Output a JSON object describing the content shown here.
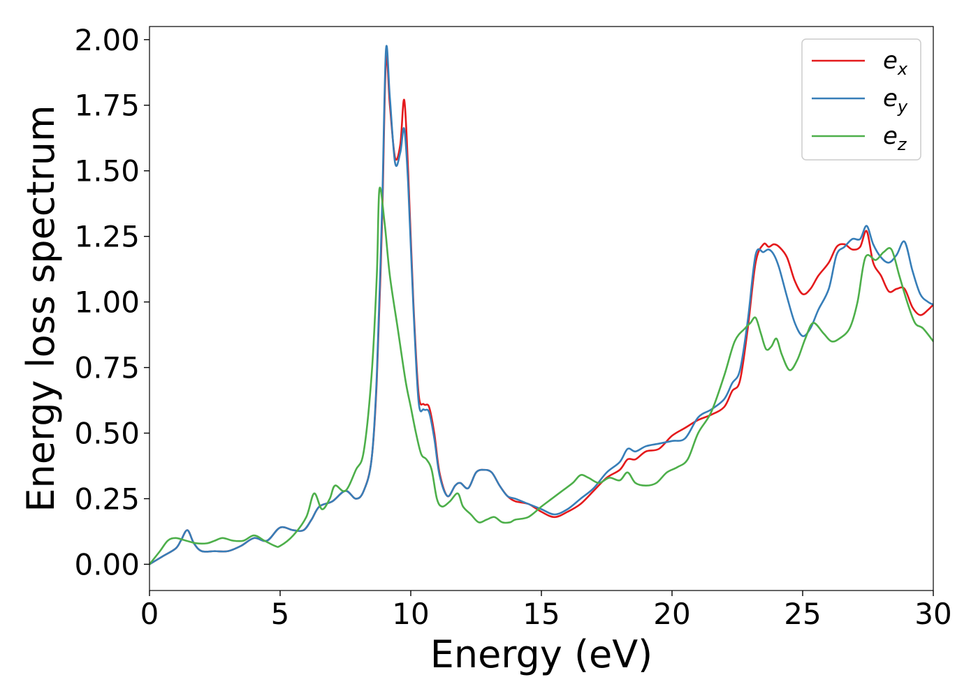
{
  "chart_data": {
    "type": "line",
    "title": "",
    "xlabel": "Energy (eV)",
    "ylabel": "Energy loss spectrum",
    "xlim": [
      0,
      30
    ],
    "ylim": [
      -0.1,
      2.05
    ],
    "xticks": [
      0,
      5,
      10,
      15,
      20,
      25,
      30
    ],
    "xtick_labels": [
      "0",
      "5",
      "10",
      "15",
      "20",
      "25",
      "30"
    ],
    "yticks": [
      0.0,
      0.25,
      0.5,
      0.75,
      1.0,
      1.25,
      1.5,
      1.75,
      2.0
    ],
    "ytick_labels": [
      "0.00",
      "0.25",
      "0.50",
      "0.75",
      "1.00",
      "1.25",
      "1.50",
      "1.75",
      "2.00"
    ],
    "grid": false,
    "legend_position": "top-right",
    "series": [
      {
        "name": "e_x",
        "label_base": "e",
        "label_sub": "x",
        "color": "#e41a1c",
        "x": [
          0,
          0.5,
          1.0,
          1.2,
          1.45,
          1.7,
          2.0,
          2.5,
          3.0,
          3.5,
          4.0,
          4.5,
          5.0,
          5.5,
          5.9,
          6.2,
          6.5,
          7.0,
          7.5,
          7.9,
          8.2,
          8.5,
          8.7,
          8.9,
          9.05,
          9.2,
          9.4,
          9.6,
          9.75,
          9.9,
          10.1,
          10.3,
          10.5,
          10.7,
          10.9,
          11.1,
          11.4,
          11.7,
          11.9,
          12.2,
          12.5,
          12.8,
          13.1,
          13.4,
          13.7,
          14.0,
          14.5,
          15.0,
          15.5,
          16.0,
          16.5,
          17.0,
          17.5,
          18.0,
          18.3,
          18.6,
          19.0,
          19.5,
          20.0,
          20.5,
          21.0,
          21.5,
          22.0,
          22.3,
          22.6,
          22.9,
          23.2,
          23.5,
          23.7,
          23.9,
          24.1,
          24.4,
          24.7,
          25.0,
          25.3,
          25.6,
          26.0,
          26.3,
          26.6,
          26.9,
          27.2,
          27.45,
          27.7,
          28.0,
          28.3,
          28.6,
          28.9,
          29.2,
          29.5,
          29.8,
          30.0
        ],
        "y": [
          0.0,
          0.03,
          0.06,
          0.09,
          0.13,
          0.08,
          0.05,
          0.05,
          0.05,
          0.07,
          0.1,
          0.09,
          0.14,
          0.13,
          0.13,
          0.17,
          0.22,
          0.24,
          0.28,
          0.25,
          0.28,
          0.4,
          0.7,
          1.3,
          1.92,
          1.75,
          1.55,
          1.6,
          1.77,
          1.5,
          1.0,
          0.65,
          0.61,
          0.6,
          0.5,
          0.35,
          0.26,
          0.3,
          0.31,
          0.29,
          0.35,
          0.36,
          0.35,
          0.3,
          0.26,
          0.24,
          0.23,
          0.2,
          0.18,
          0.2,
          0.23,
          0.28,
          0.33,
          0.36,
          0.4,
          0.4,
          0.43,
          0.44,
          0.49,
          0.52,
          0.55,
          0.57,
          0.6,
          0.66,
          0.7,
          0.9,
          1.15,
          1.22,
          1.21,
          1.22,
          1.21,
          1.17,
          1.08,
          1.03,
          1.05,
          1.1,
          1.15,
          1.21,
          1.22,
          1.2,
          1.21,
          1.27,
          1.15,
          1.1,
          1.04,
          1.05,
          1.05,
          0.98,
          0.95,
          0.97,
          0.99
        ]
      },
      {
        "name": "e_y",
        "label_base": "e",
        "label_sub": "y",
        "color": "#377eb8",
        "x": [
          0,
          0.5,
          1.0,
          1.2,
          1.45,
          1.7,
          2.0,
          2.5,
          3.0,
          3.5,
          4.0,
          4.5,
          5.0,
          5.5,
          5.9,
          6.2,
          6.5,
          7.0,
          7.5,
          7.9,
          8.2,
          8.5,
          8.7,
          8.9,
          9.05,
          9.2,
          9.4,
          9.6,
          9.75,
          9.9,
          10.1,
          10.3,
          10.5,
          10.7,
          10.9,
          11.1,
          11.4,
          11.7,
          11.9,
          12.2,
          12.5,
          12.8,
          13.1,
          13.4,
          13.7,
          14.0,
          14.5,
          15.0,
          15.5,
          16.0,
          16.5,
          17.0,
          17.5,
          18.0,
          18.3,
          18.6,
          19.0,
          19.5,
          20.0,
          20.5,
          21.0,
          21.5,
          22.0,
          22.3,
          22.6,
          22.9,
          23.2,
          23.5,
          23.7,
          23.9,
          24.1,
          24.4,
          24.7,
          25.0,
          25.3,
          25.6,
          26.0,
          26.3,
          26.6,
          26.9,
          27.2,
          27.45,
          27.7,
          28.0,
          28.3,
          28.6,
          28.9,
          29.2,
          29.5,
          29.8,
          30.0
        ],
        "y": [
          0.0,
          0.03,
          0.06,
          0.09,
          0.13,
          0.08,
          0.05,
          0.05,
          0.05,
          0.07,
          0.1,
          0.09,
          0.14,
          0.13,
          0.13,
          0.17,
          0.22,
          0.24,
          0.28,
          0.25,
          0.28,
          0.4,
          0.72,
          1.35,
          1.96,
          1.78,
          1.53,
          1.57,
          1.66,
          1.45,
          0.98,
          0.62,
          0.59,
          0.58,
          0.48,
          0.34,
          0.26,
          0.3,
          0.31,
          0.29,
          0.35,
          0.36,
          0.35,
          0.3,
          0.26,
          0.25,
          0.23,
          0.21,
          0.19,
          0.21,
          0.25,
          0.29,
          0.35,
          0.39,
          0.44,
          0.43,
          0.45,
          0.46,
          0.47,
          0.48,
          0.56,
          0.59,
          0.63,
          0.69,
          0.74,
          0.93,
          1.18,
          1.19,
          1.2,
          1.18,
          1.13,
          1.02,
          0.92,
          0.87,
          0.9,
          0.97,
          1.05,
          1.18,
          1.21,
          1.24,
          1.24,
          1.29,
          1.22,
          1.17,
          1.15,
          1.18,
          1.23,
          1.12,
          1.03,
          1.0,
          0.99
        ]
      },
      {
        "name": "e_z",
        "label_base": "e",
        "label_sub": "z",
        "color": "#4daf4a",
        "x": [
          0,
          0.4,
          0.7,
          1.0,
          1.4,
          1.8,
          2.2,
          2.5,
          2.8,
          3.2,
          3.6,
          4.0,
          4.4,
          4.8,
          5.0,
          5.5,
          6.0,
          6.3,
          6.6,
          6.9,
          7.1,
          7.5,
          7.9,
          8.2,
          8.5,
          8.7,
          8.8,
          9.0,
          9.2,
          9.5,
          9.8,
          10.0,
          10.2,
          10.4,
          10.6,
          10.8,
          11.0,
          11.2,
          11.5,
          11.8,
          12.0,
          12.3,
          12.6,
          12.9,
          13.2,
          13.5,
          13.8,
          14.0,
          14.5,
          15.0,
          15.4,
          15.8,
          16.2,
          16.5,
          16.8,
          17.2,
          17.6,
          18.0,
          18.3,
          18.6,
          19.0,
          19.4,
          19.8,
          20.2,
          20.6,
          21.0,
          21.5,
          22.0,
          22.4,
          22.8,
          23.0,
          23.2,
          23.4,
          23.6,
          23.8,
          24.0,
          24.2,
          24.5,
          24.8,
          25.1,
          25.4,
          25.8,
          26.1,
          26.4,
          26.8,
          27.1,
          27.4,
          27.8,
          28.1,
          28.4,
          28.7,
          29.0,
          29.3,
          29.6,
          30.0
        ],
        "y": [
          0.0,
          0.05,
          0.09,
          0.1,
          0.09,
          0.08,
          0.08,
          0.09,
          0.1,
          0.09,
          0.09,
          0.11,
          0.09,
          0.07,
          0.07,
          0.11,
          0.18,
          0.27,
          0.21,
          0.25,
          0.3,
          0.28,
          0.36,
          0.43,
          0.72,
          1.1,
          1.43,
          1.3,
          1.1,
          0.9,
          0.7,
          0.6,
          0.5,
          0.42,
          0.4,
          0.36,
          0.25,
          0.22,
          0.24,
          0.27,
          0.22,
          0.19,
          0.16,
          0.17,
          0.18,
          0.16,
          0.16,
          0.17,
          0.18,
          0.22,
          0.25,
          0.28,
          0.31,
          0.34,
          0.33,
          0.31,
          0.33,
          0.32,
          0.35,
          0.31,
          0.3,
          0.31,
          0.35,
          0.37,
          0.4,
          0.5,
          0.58,
          0.72,
          0.85,
          0.9,
          0.92,
          0.94,
          0.88,
          0.82,
          0.83,
          0.86,
          0.8,
          0.74,
          0.78,
          0.86,
          0.92,
          0.88,
          0.85,
          0.86,
          0.9,
          1.0,
          1.17,
          1.16,
          1.19,
          1.2,
          1.1,
          1.0,
          0.92,
          0.9,
          0.85
        ]
      }
    ]
  }
}
